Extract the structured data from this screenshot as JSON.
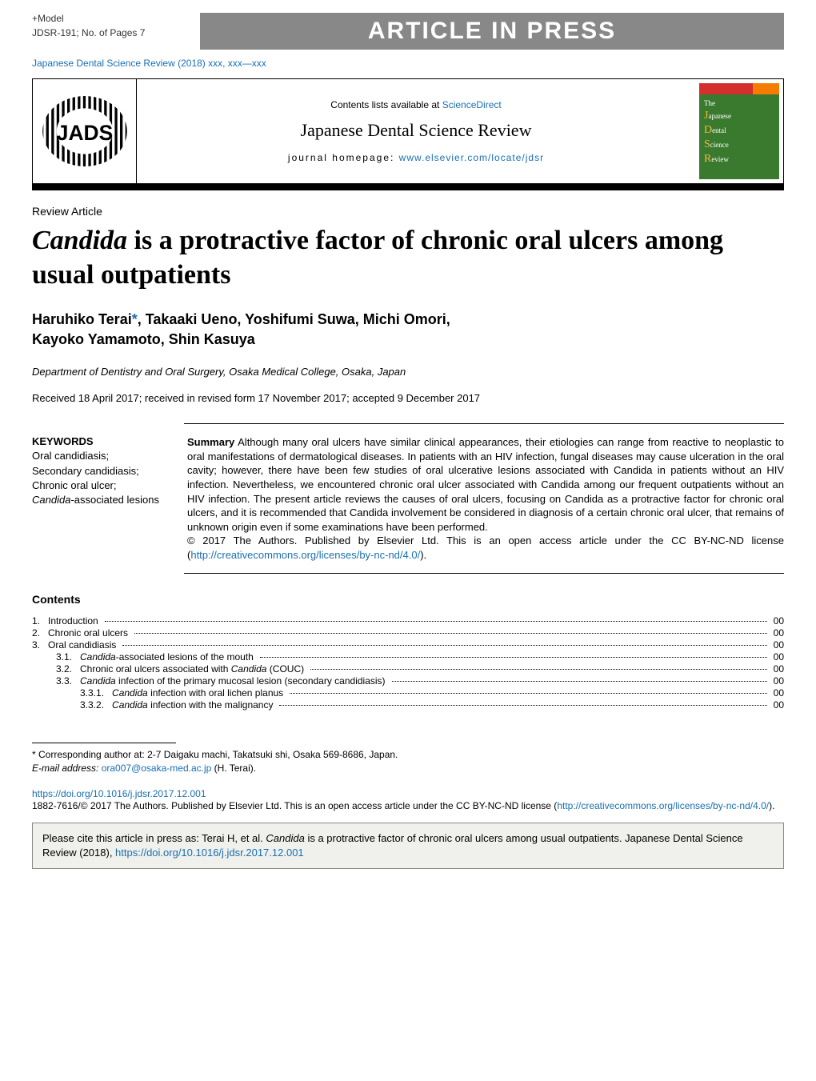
{
  "model": {
    "label": "+Model",
    "ref": "JDSR-191;   No. of Pages 7"
  },
  "banner": "ARTICLE IN PRESS",
  "journal_ref": "Japanese Dental Science Review (2018) xxx, xxx—xxx",
  "header": {
    "contents_prefix": "Contents lists available at ",
    "contents_link": "ScienceDirect",
    "journal": "Japanese Dental Science Review",
    "homepage_prefix": "journal homepage: ",
    "homepage_link": "www.elsevier.com/locate/jdsr"
  },
  "cover": {
    "line1": "The",
    "j": "J",
    "w1": "apanese",
    "d": "D",
    "w2": "ental",
    "s": "S",
    "w3": "cience",
    "r": "R",
    "w4": "eview"
  },
  "article": {
    "type": "Review Article",
    "title_part1": "Candida",
    "title_part2": " is a protractive factor of chronic oral ulcers among usual outpatients",
    "authors_line1": "Haruhiko Terai",
    "authors_ast": "*",
    "authors_line1b": ", Takaaki Ueno, Yoshifumi Suwa, Michi Omori,",
    "authors_line2": "Kayoko Yamamoto, Shin Kasuya",
    "affiliation": "Department of Dentistry and Oral Surgery, Osaka Medical College, Osaka, Japan",
    "dates": "Received 18 April 2017; received in revised form 17 November 2017; accepted 9 December 2017"
  },
  "keywords": {
    "heading": "KEYWORDS",
    "items": "Oral candidiasis;\nSecondary candidiasis;\nChronic oral ulcer;\nCandida-associated lesions"
  },
  "summary": {
    "label": "Summary",
    "text": "    Although many oral ulcers have similar clinical appearances, their etiologies can range from reactive to neoplastic to oral manifestations of dermatological diseases. In patients with an HIV infection, fungal diseases may cause ulceration in the oral cavity; however, there have been few studies of oral ulcerative lesions associated with Candida in patients without an HIV infection. Nevertheless, we encountered chronic oral ulcer associated with Candida among our frequent outpatients without an HIV infection. The present article reviews the causes of oral ulcers, focusing on Candida as a protractive factor for chronic oral ulcers, and it is recommended that Candida involvement be considered in diagnosis of a certain chronic oral ulcer, that remains of unknown origin even if some examinations have been performed.",
    "copyright": "© 2017 The Authors. Published by Elsevier Ltd. This is an open access article under the CC BY-NC-ND license (",
    "license_link": "http://creativecommons.org/licenses/by-nc-nd/4.0/",
    "copyright_end": ")."
  },
  "contents": {
    "heading": "Contents",
    "items": [
      {
        "num": "1.",
        "indent": 0,
        "text": "Introduction",
        "page": "00"
      },
      {
        "num": "2.",
        "indent": 0,
        "text": "Chronic oral ulcers",
        "page": "00"
      },
      {
        "num": "3.",
        "indent": 0,
        "text": "Oral candidiasis",
        "page": "00"
      },
      {
        "num": "3.1.",
        "indent": 1,
        "text_pre": "Candida",
        "text": "-associated lesions of the mouth",
        "page": "00"
      },
      {
        "num": "3.2.",
        "indent": 1,
        "text": "Chronic oral ulcers associated with ",
        "text_ital": "Candida",
        "text_post": " (COUC)",
        "page": "00"
      },
      {
        "num": "3.3.",
        "indent": 1,
        "text_pre": "Candida",
        "text": " infection of the primary mucosal lesion (secondary candidiasis)",
        "page": "00"
      },
      {
        "num": "3.3.1.",
        "indent": 2,
        "text_pre": "Candida",
        "text": " infection with oral lichen planus",
        "page": "00"
      },
      {
        "num": "3.3.2.",
        "indent": 2,
        "text_pre": "Candida",
        "text": " infection with the malignancy",
        "page": "00"
      }
    ]
  },
  "footnote": {
    "corr": "* Corresponding author at: 2-7 Daigaku machi, Takatsuki shi, Osaka 569-8686, Japan.",
    "email_label": "E-mail address: ",
    "email": "ora007@osaka-med.ac.jp",
    "email_suffix": " (H. Terai)."
  },
  "doi": {
    "link": "https://doi.org/10.1016/j.jdsr.2017.12.001",
    "issn": "1882-7616/© 2017 The Authors. Published by Elsevier Ltd. This is an open access article under the CC BY-NC-ND license (",
    "license": "http://creativecommons.org/licenses/by-nc-nd/4.0/",
    "end": ")."
  },
  "citebox": {
    "pre": "Please cite this article in press as: Terai H, et al. ",
    "ital": "Candida",
    "mid": " is a protractive factor of chronic oral ulcers among usual outpatients. Japanese Dental Science Review (2018), ",
    "link": "https://doi.org/10.1016/j.jdsr.2017.12.001"
  },
  "colors": {
    "link": "#1a6fb0",
    "banner_bg": "#888888",
    "cover_green": "#3a7a2f",
    "cover_red": "#d32f2f",
    "cover_orange": "#f57c00",
    "cover_yellow": "#f7b733",
    "citebox_bg": "#f0f0ec"
  }
}
